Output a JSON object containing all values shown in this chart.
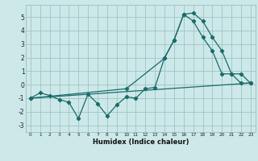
{
  "xlabel": "Humidex (Indice chaleur)",
  "bg_color": "#cde8e8",
  "grid_color": "#a0c4c4",
  "line_color": "#1a6b6b",
  "xlim": [
    -0.5,
    23.5
  ],
  "ylim": [
    -3.5,
    5.9
  ],
  "yticks": [
    -3,
    -2,
    -1,
    0,
    1,
    2,
    3,
    4,
    5
  ],
  "xticks": [
    0,
    1,
    2,
    3,
    4,
    5,
    6,
    7,
    8,
    9,
    10,
    11,
    12,
    13,
    14,
    15,
    16,
    17,
    18,
    19,
    20,
    21,
    22,
    23
  ],
  "line1_x": [
    0,
    1,
    2,
    3,
    4,
    5,
    6,
    7,
    8,
    9,
    10,
    11,
    12,
    13,
    14,
    15,
    16,
    17,
    18,
    19,
    20,
    21,
    22,
    23
  ],
  "line1_y": [
    -1.0,
    -0.6,
    -0.8,
    -1.1,
    -1.3,
    -2.5,
    -0.7,
    -1.4,
    -2.3,
    -1.5,
    -0.9,
    -1.0,
    -0.3,
    -0.2,
    2.0,
    3.3,
    5.2,
    5.3,
    4.7,
    3.5,
    2.5,
    0.8,
    0.8,
    0.1
  ],
  "line2_x": [
    0,
    10,
    14,
    15,
    16,
    17,
    18,
    19,
    20,
    21,
    22,
    23
  ],
  "line2_y": [
    -1.0,
    -0.3,
    1.95,
    3.3,
    5.2,
    4.7,
    3.5,
    2.5,
    0.8,
    0.8,
    0.1,
    0.12
  ],
  "line3_x": [
    0,
    23
  ],
  "line3_y": [
    -1.0,
    0.12
  ]
}
